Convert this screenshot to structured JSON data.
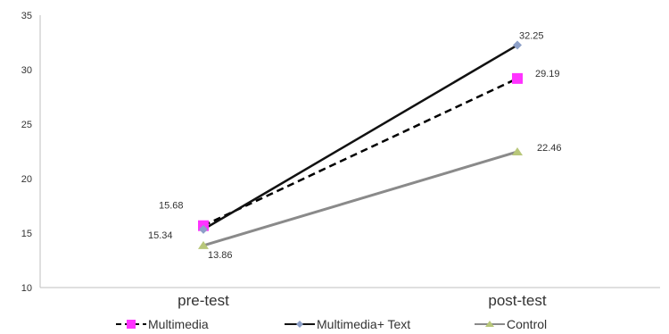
{
  "chart_data": {
    "type": "line",
    "title": "",
    "xlabel": "",
    "ylabel": "",
    "categories": [
      "pre-test",
      "post-test"
    ],
    "ylim": [
      10,
      35
    ],
    "yticks": [
      "10",
      "15",
      "20",
      "25",
      "30",
      "35"
    ],
    "grid": false,
    "legend_position": "bottom",
    "series": [
      {
        "name": "Multimedia",
        "values": [
          15.68,
          29.19
        ],
        "labels": [
          "15.68",
          "29.19"
        ],
        "color": "#000000",
        "marker_color": "#ff33ff",
        "dashed": true
      },
      {
        "name": "Multimedia+ Text",
        "values": [
          15.34,
          32.25
        ],
        "labels": [
          "15.34",
          "32.25"
        ],
        "color": "#111111",
        "marker_color": "#8da0c8",
        "dashed": false
      },
      {
        "name": "Control",
        "values": [
          13.86,
          22.46
        ],
        "labels": [
          "13.86",
          "22.46"
        ],
        "color": "#8a8a8a",
        "marker_color": "#b8c77a",
        "dashed": false
      }
    ]
  }
}
